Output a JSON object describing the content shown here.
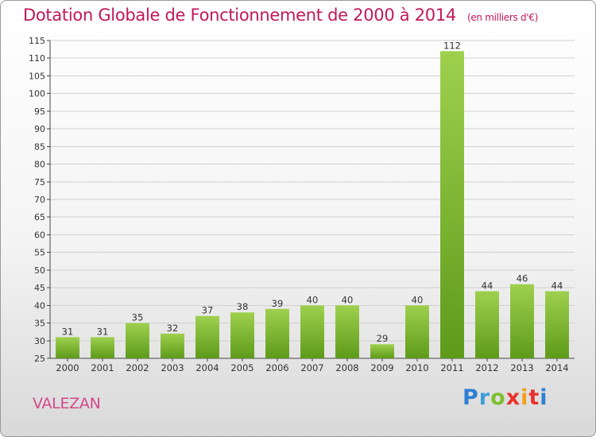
{
  "title": "Dotation Globale de Fonctionnement de 2000 à 2014",
  "unit_label": "(en milliers d'€)",
  "commune": "VALEZAN",
  "logo_text": "Proxiti",
  "colors": {
    "title": "#c2185b",
    "bar_light": "#9ed04e",
    "bar_dark": "#5e9a1a",
    "grid": "#d0d0d0"
  },
  "chart_data": {
    "type": "bar",
    "title": "Dotation Globale de Fonctionnement de 2000 à 2014",
    "subtitle": "(en milliers d'€)",
    "categories": [
      "2000",
      "2001",
      "2002",
      "2003",
      "2004",
      "2005",
      "2006",
      "2007",
      "2008",
      "2009",
      "2010",
      "2011",
      "2012",
      "2013",
      "2014"
    ],
    "values": [
      31,
      31,
      35,
      32,
      37,
      38,
      39,
      40,
      40,
      29,
      40,
      112,
      44,
      46,
      44
    ],
    "ylim": [
      25,
      115
    ],
    "ytick_step": 5,
    "grid": true,
    "legend": false
  }
}
